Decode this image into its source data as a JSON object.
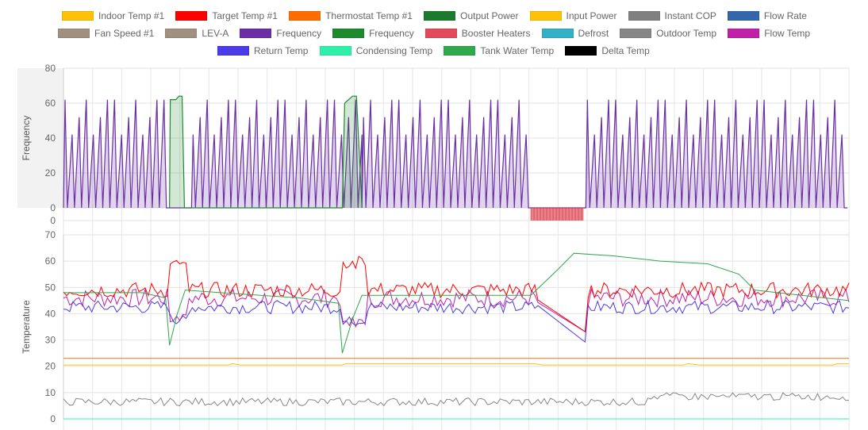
{
  "legend": {
    "rows": [
      [
        {
          "label": "Indoor Temp #1",
          "color": "#ffc107"
        },
        {
          "label": "Target Temp #1",
          "color": "#ff0000"
        },
        {
          "label": "Thermostat Temp #1",
          "color": "#ff6d00"
        },
        {
          "label": "Output Power",
          "color": "#1b7a2b"
        },
        {
          "label": "Input Power",
          "color": "#ffc107"
        },
        {
          "label": "Instant COP",
          "color": "#808080"
        },
        {
          "label": "Flow Rate",
          "color": "#3366aa"
        }
      ],
      [
        {
          "label": "Fan Speed #1",
          "color": "#a09080"
        },
        {
          "label": "LEV-A",
          "color": "#a09080"
        },
        {
          "label": "Frequency",
          "color": "#6b2fa5"
        },
        {
          "label": "Frequency",
          "color": "#1e8a2e"
        },
        {
          "label": "Booster Heaters",
          "color": "#e04a5a"
        },
        {
          "label": "Defrost",
          "color": "#33b0c4"
        },
        {
          "label": "Outdoor Temp",
          "color": "#868686"
        },
        {
          "label": "Flow Temp",
          "color": "#c020a8"
        }
      ],
      [
        {
          "label": "Return Temp",
          "color": "#4a3ae8"
        },
        {
          "label": "Condensing Temp",
          "color": "#2ef0a8"
        },
        {
          "label": "Tank Water Temp",
          "color": "#2ea84a"
        },
        {
          "label": "Delta Temp",
          "color": "#000000"
        }
      ]
    ]
  },
  "chart_data": [
    {
      "type": "area",
      "ylabel": "Frequency",
      "ylim": [
        0,
        80
      ],
      "yticks": [
        0,
        20,
        40,
        60,
        80
      ],
      "x_range": [
        0,
        1000
      ],
      "series": [
        {
          "name": "Frequency",
          "color": "#6b2fa5",
          "fill": "rgba(107,47,165,0.2)",
          "pattern": "cycling",
          "peaks": [
            62,
            42,
            52,
            62,
            42,
            52,
            62
          ],
          "min": 0,
          "segments": [
            [
              0,
              135
            ],
            [
              163,
              380
            ],
            [
              380,
              595
            ],
            [
              665,
              998
            ]
          ]
        },
        {
          "name": "Frequency",
          "color": "#1e8a2e",
          "fill": "rgba(30,138,46,0.2)",
          "pattern": "hot-water",
          "points": [
            [
              135,
              0
            ],
            [
              136,
              62
            ],
            [
              143,
              62
            ],
            [
              147,
              64
            ],
            [
              151,
              64
            ],
            [
              154,
              0
            ],
            [
              355,
              0
            ],
            [
              358,
              60
            ],
            [
              363,
              62
            ],
            [
              368,
              64
            ],
            [
              373,
              64
            ],
            [
              380,
              0
            ]
          ]
        },
        {
          "name": "Booster Heaters",
          "color": "#e04a5a",
          "fill": "rgba(224,74,90,0.7)",
          "band": [
            595,
            662
          ],
          "value": -8
        }
      ]
    },
    {
      "type": "line",
      "ylabel": "Temperature",
      "ylim": [
        0,
        70
      ],
      "yticks": [
        0,
        10,
        20,
        30,
        40,
        50,
        60,
        70
      ],
      "x_range": [
        0,
        1000
      ],
      "series": [
        {
          "name": "Flow Temp",
          "color": "#c020a8",
          "base": 46,
          "amp": 3.5
        },
        {
          "name": "Return Temp",
          "color": "#4a3ae8",
          "base": 42.5,
          "amp": 2.5
        },
        {
          "name": "Target Temp #1",
          "color": "#ff0000",
          "base": 49,
          "amp": 3
        },
        {
          "name": "Tank Water Temp",
          "color": "#2ea84a",
          "points": [
            [
              0,
              48
            ],
            [
              100,
              48
            ],
            [
              130,
              46
            ],
            [
              135,
              28
            ],
            [
              145,
              40
            ],
            [
              155,
              49
            ],
            [
              200,
              48
            ],
            [
              300,
              46
            ],
            [
              350,
              44
            ],
            [
              355,
              25
            ],
            [
              368,
              38
            ],
            [
              380,
              47
            ],
            [
              450,
              47
            ],
            [
              595,
              47
            ],
            [
              630,
              57
            ],
            [
              650,
              63
            ],
            [
              700,
              62
            ],
            [
              760,
              60
            ],
            [
              820,
              59
            ],
            [
              860,
              55
            ],
            [
              880,
              49
            ],
            [
              1000,
              45
            ]
          ]
        },
        {
          "name": "Thermostat Temp #1",
          "color": "#ff6d00",
          "flat": 23
        },
        {
          "name": "Indoor Temp #1",
          "color": "#ffc107",
          "flat": 20.5
        },
        {
          "name": "Outdoor Temp",
          "color": "#868686",
          "base": 6.5,
          "amp": 1.5
        },
        {
          "name": "Condensing Temp",
          "color": "#2ef0a8",
          "flat": 0
        }
      ]
    }
  ]
}
